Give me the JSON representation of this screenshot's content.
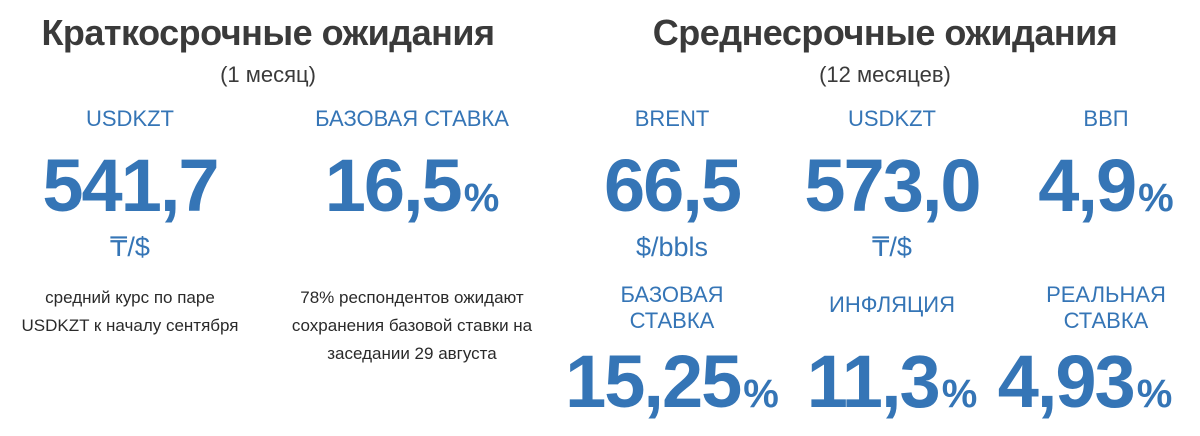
{
  "short_term": {
    "title": "Краткосрочные ожидания",
    "subtitle": "(1 месяц)",
    "items": [
      {
        "label": "USDKZT",
        "value": "541,7",
        "unit": "₸/$",
        "note": [
          "средний курс по паре",
          "USDKZT к началу сентября"
        ]
      },
      {
        "label": "БАЗОВАЯ СТАВКА",
        "value": "16,5",
        "unit": "%",
        "note": [
          "78% респондентов ожидают",
          "сохранения базовой ставки на",
          "заседании 29 августа"
        ]
      }
    ]
  },
  "medium_term": {
    "title": "Среднесрочные ожидания",
    "subtitle": "(12 месяцев)",
    "items": [
      {
        "label": "BRENT",
        "value": "66,5",
        "unit": "$/bbls"
      },
      {
        "label": "USDKZT",
        "value": "573,0",
        "unit": "₸/$"
      },
      {
        "label": "ВВП",
        "value": "4,9",
        "unit": "%"
      },
      {
        "label": "БАЗОВАЯ СТАВКА",
        "value": "15,25",
        "unit": "%"
      },
      {
        "label": "ИНФЛЯЦИЯ",
        "value": "11,3",
        "unit": "%"
      },
      {
        "label": "РЕАЛЬНАЯ СТАВКА",
        "value": "4,93",
        "unit": "%"
      }
    ]
  }
}
